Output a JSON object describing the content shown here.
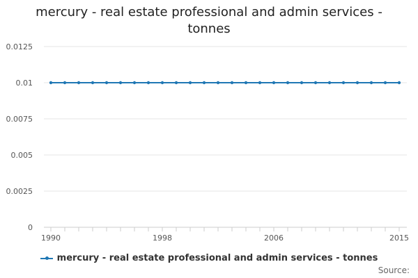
{
  "title": "mercury - real estate professional and admin services - tonnes",
  "source_label": "Source:",
  "colors": {
    "series": "#1f77b4",
    "grid": "#e6e6e6",
    "axis": "#cccccc"
  },
  "chart_data": {
    "type": "line",
    "title": "mercury - real estate professional and admin services - tonnes",
    "xlabel": "",
    "ylabel": "",
    "x": [
      1990,
      1991,
      1992,
      1993,
      1994,
      1995,
      1996,
      1997,
      1998,
      1999,
      2000,
      2001,
      2002,
      2003,
      2004,
      2005,
      2006,
      2007,
      2008,
      2009,
      2010,
      2011,
      2012,
      2013,
      2014,
      2015
    ],
    "xlim": [
      1990,
      2015
    ],
    "ylim": [
      0,
      0.0125
    ],
    "x_tick_labels": [
      "1990",
      "1998",
      "2006",
      "2015"
    ],
    "y_tick_labels": [
      "0",
      "0.0025",
      "0.005",
      "0.0075",
      "0.01",
      "0.0125"
    ],
    "grid": true,
    "legend_position": "bottom",
    "series": [
      {
        "name": "mercury - real estate professional and admin services - tonnes",
        "values": [
          0.01,
          0.01,
          0.01,
          0.01,
          0.01,
          0.01,
          0.01,
          0.01,
          0.01,
          0.01,
          0.01,
          0.01,
          0.01,
          0.01,
          0.01,
          0.01,
          0.01,
          0.01,
          0.01,
          0.01,
          0.01,
          0.01,
          0.01,
          0.01,
          0.01,
          0.01
        ]
      }
    ]
  }
}
